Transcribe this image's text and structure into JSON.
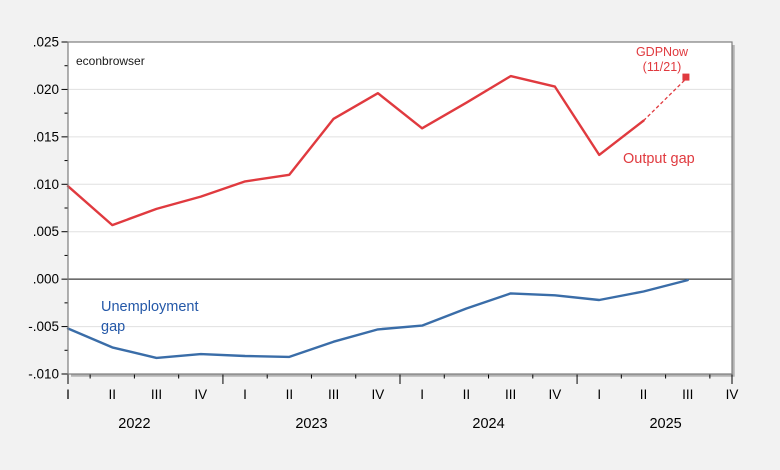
{
  "colors": {
    "background": "#f2f2f2",
    "plot_background": "#ffffff",
    "grid": "#e0e0e0",
    "zero_line": "#3c3c3c",
    "frame": "#7d7d7d",
    "frame_shadow": "#b3b3b3",
    "axis_text": "#000000",
    "red": "#e03a3f",
    "blue": "#3a6da8",
    "blue_text": "#2458a8"
  },
  "annotations": {
    "watermark": "econbrowser",
    "output_gap_label": "Output gap",
    "unemployment_label_line1": "Unemployment",
    "unemployment_label_line2": "gap",
    "gdpnow_label_line1": "GDPNow",
    "gdpnow_label_line2": "(11/21)"
  },
  "chart_data": {
    "type": "line",
    "n_periods": 16,
    "x_axis": {
      "years": [
        "2022",
        "2023",
        "2024",
        "2025"
      ],
      "quarters_per_year": [
        "I",
        "II",
        "III",
        "IV"
      ]
    },
    "y_axis": {
      "tick_labels": [
        ".025",
        ".020",
        ".015",
        ".010",
        ".005",
        ".000",
        "-.005",
        "-.010"
      ],
      "tick_values": [
        0.025,
        0.02,
        0.015,
        0.01,
        0.005,
        0.0,
        -0.005,
        -0.01
      ],
      "ylim": [
        -0.01,
        0.025
      ]
    },
    "grid": true,
    "zero_line": true,
    "series": [
      {
        "name": "Output gap",
        "color_key": "red",
        "values": [
          0.0098,
          0.0057,
          0.0074,
          0.0087,
          0.0103,
          0.011,
          0.0169,
          0.0196,
          0.0159,
          0.0186,
          0.0214,
          0.0203,
          0.0131,
          0.0167
        ]
      },
      {
        "name": "Unemployment gap",
        "color_key": "blue",
        "values": [
          -0.0052,
          -0.0072,
          -0.0083,
          -0.0079,
          -0.0081,
          -0.0082,
          -0.0066,
          -0.0053,
          -0.0049,
          -0.0031,
          -0.0015,
          -0.0017,
          -0.0022,
          -0.0013,
          -0.0001
        ]
      }
    ],
    "forecast": {
      "name": "GDPNow (11/21)",
      "period_index": 14,
      "value": 0.0213,
      "connects_from_index": 13,
      "marker": "square",
      "color_key": "red"
    }
  }
}
